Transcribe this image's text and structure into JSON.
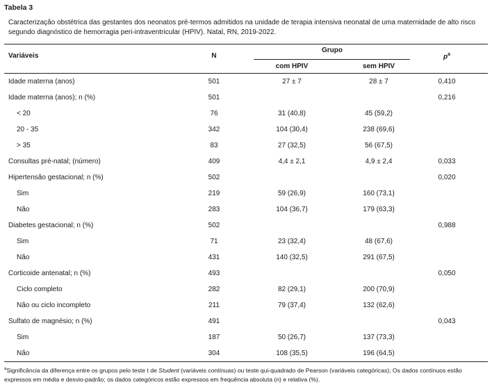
{
  "title": "Tabela 3",
  "caption": "Caracterização obstétrica das gestantes dos neonatos pré-termos admitidos na unidade de terapia intensiva neonatal de uma maternidade de alto risco segundo diagnóstico de hemorragia peri-intraventricular (HPIV). Natal, RN, 2019-2022.",
  "header": {
    "variable": "Variáveis",
    "n": "N",
    "group": "Grupo",
    "com": "com HPIV",
    "sem": "sem HPIV",
    "p": "p",
    "p_mark": "a"
  },
  "table": {
    "rows": [
      {
        "variable": "Idade materna (anos)",
        "n": "501",
        "com": "27 ± 7",
        "sem": "28 ± 7",
        "p": "0,410",
        "items": []
      },
      {
        "variable": "Idade materna (anos); n (%)",
        "n": "501",
        "com": null,
        "sem": null,
        "p": "0,216",
        "items": [
          {
            "variable": "< 20",
            "n": "76",
            "com": "31 (40,8)",
            "sem": "45 (59,2)"
          },
          {
            "variable": "20 - 35",
            "n": "342",
            "com": "104 (30,4)",
            "sem": "238 (69,6)"
          },
          {
            "variable": "> 35",
            "n": "83",
            "com": "27 (32,5)",
            "sem": "56 (67,5)"
          }
        ]
      },
      {
        "variable": "Consultas pré-natal; (número)",
        "n": "409",
        "com": "4,4 ± 2,1",
        "sem": "4,9 ± 2,4",
        "p": "0,033",
        "items": []
      },
      {
        "variable": "Hipertensão gestacional; n (%)",
        "n": "502",
        "com": null,
        "sem": null,
        "p": "0,020",
        "items": [
          {
            "variable": "Sim",
            "n": "219",
            "com": "59 (26,9)",
            "sem": "160 (73,1)"
          },
          {
            "variable": "Não",
            "n": "283",
            "com": "104 (36,7)",
            "sem": "179 (63,3)"
          }
        ]
      },
      {
        "variable": "Diabetes gestacional; n (%)",
        "n": "502",
        "com": null,
        "sem": null,
        "p": "0,988",
        "items": [
          {
            "variable": "Sim",
            "n": "71",
            "com": "23 (32,4)",
            "sem": "48 (67,6)"
          },
          {
            "variable": "Não",
            "n": "431",
            "com": "140 (32,5)",
            "sem": "291 (67,5)"
          }
        ]
      },
      {
        "variable": "Corticoide antenatal; n (%)",
        "n": "493",
        "com": null,
        "sem": null,
        "p": "0,050",
        "items": [
          {
            "variable": "Ciclo completo",
            "n": "282",
            "com": "82 (29,1)",
            "sem": "200 (70,9)"
          },
          {
            "variable": "Não ou ciclo incompleto",
            "n": "211",
            "com": "79 (37,4)",
            "sem": "132 (62,6)"
          }
        ]
      },
      {
        "variable": "Sulfato de magnésio; n (%)",
        "n": "491",
        "com": null,
        "sem": null,
        "p": "0,043",
        "items": [
          {
            "variable": "Sim",
            "n": "187",
            "com": "50 (26,7)",
            "sem": "137 (73,3)"
          },
          {
            "variable": "Não",
            "n": "304",
            "com": "108 (35,5)",
            "sem": "196 (64,5)"
          }
        ]
      }
    ]
  },
  "footnote": {
    "mark": "a",
    "before": "Significância da diferença entre os grupos pelo teste t de ",
    "student": "Student",
    "after": " (variáveis contínuas) ou teste qui-quadrado de Pearson (variáveis categóricas); Os dados contínuos estão expressos em média e desvio-padrão; os dados categóricos estão expressos em frequência absoluta (n) e relativa (%)."
  }
}
